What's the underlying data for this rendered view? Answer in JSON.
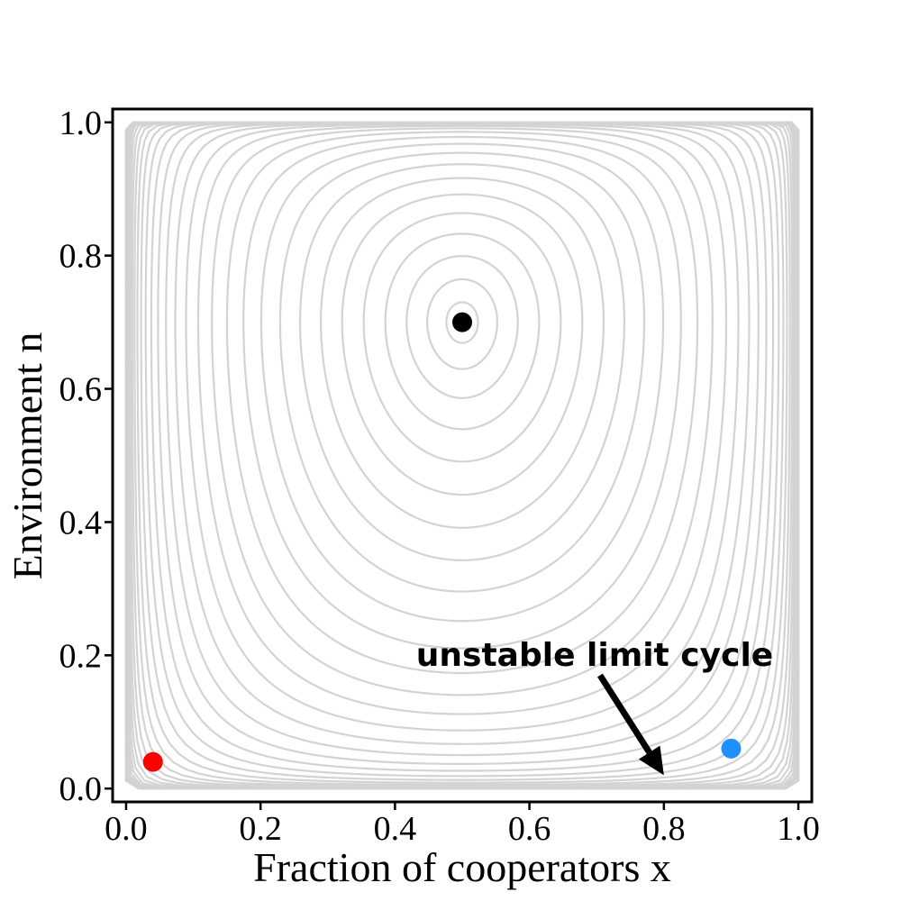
{
  "chart_data": {
    "type": "line",
    "title": "",
    "xlabel": "Fraction of cooperators x",
    "ylabel": "Environment n",
    "xlim": [
      -0.02,
      1.02
    ],
    "ylim": [
      -0.02,
      1.02
    ],
    "xticks": [
      "0.0",
      "0.2",
      "0.4",
      "0.6",
      "0.8",
      "1.0"
    ],
    "yticks": [
      "0.0",
      "0.2",
      "0.4",
      "0.6",
      "0.8",
      "1.0"
    ],
    "grid": false,
    "legend": "none",
    "colors": {
      "orbits": "#d3d3d3",
      "center": "#000000",
      "red_point": "#ff0000",
      "blue_point": "#1e90ff"
    },
    "orbits": {
      "center": [
        0.5,
        0.7
      ],
      "count": 42
    },
    "points": [
      {
        "x": 0.5,
        "y": 0.7,
        "color": "#000000"
      },
      {
        "x": 0.04,
        "y": 0.04,
        "color": "#ff0000"
      },
      {
        "x": 0.9,
        "y": 0.06,
        "color": "#1e90ff"
      }
    ],
    "annotation": {
      "text": "unstable limit cycle",
      "arrow_tail": [
        0.705,
        0.17
      ],
      "arrow_head": [
        0.8,
        0.02
      ]
    }
  }
}
